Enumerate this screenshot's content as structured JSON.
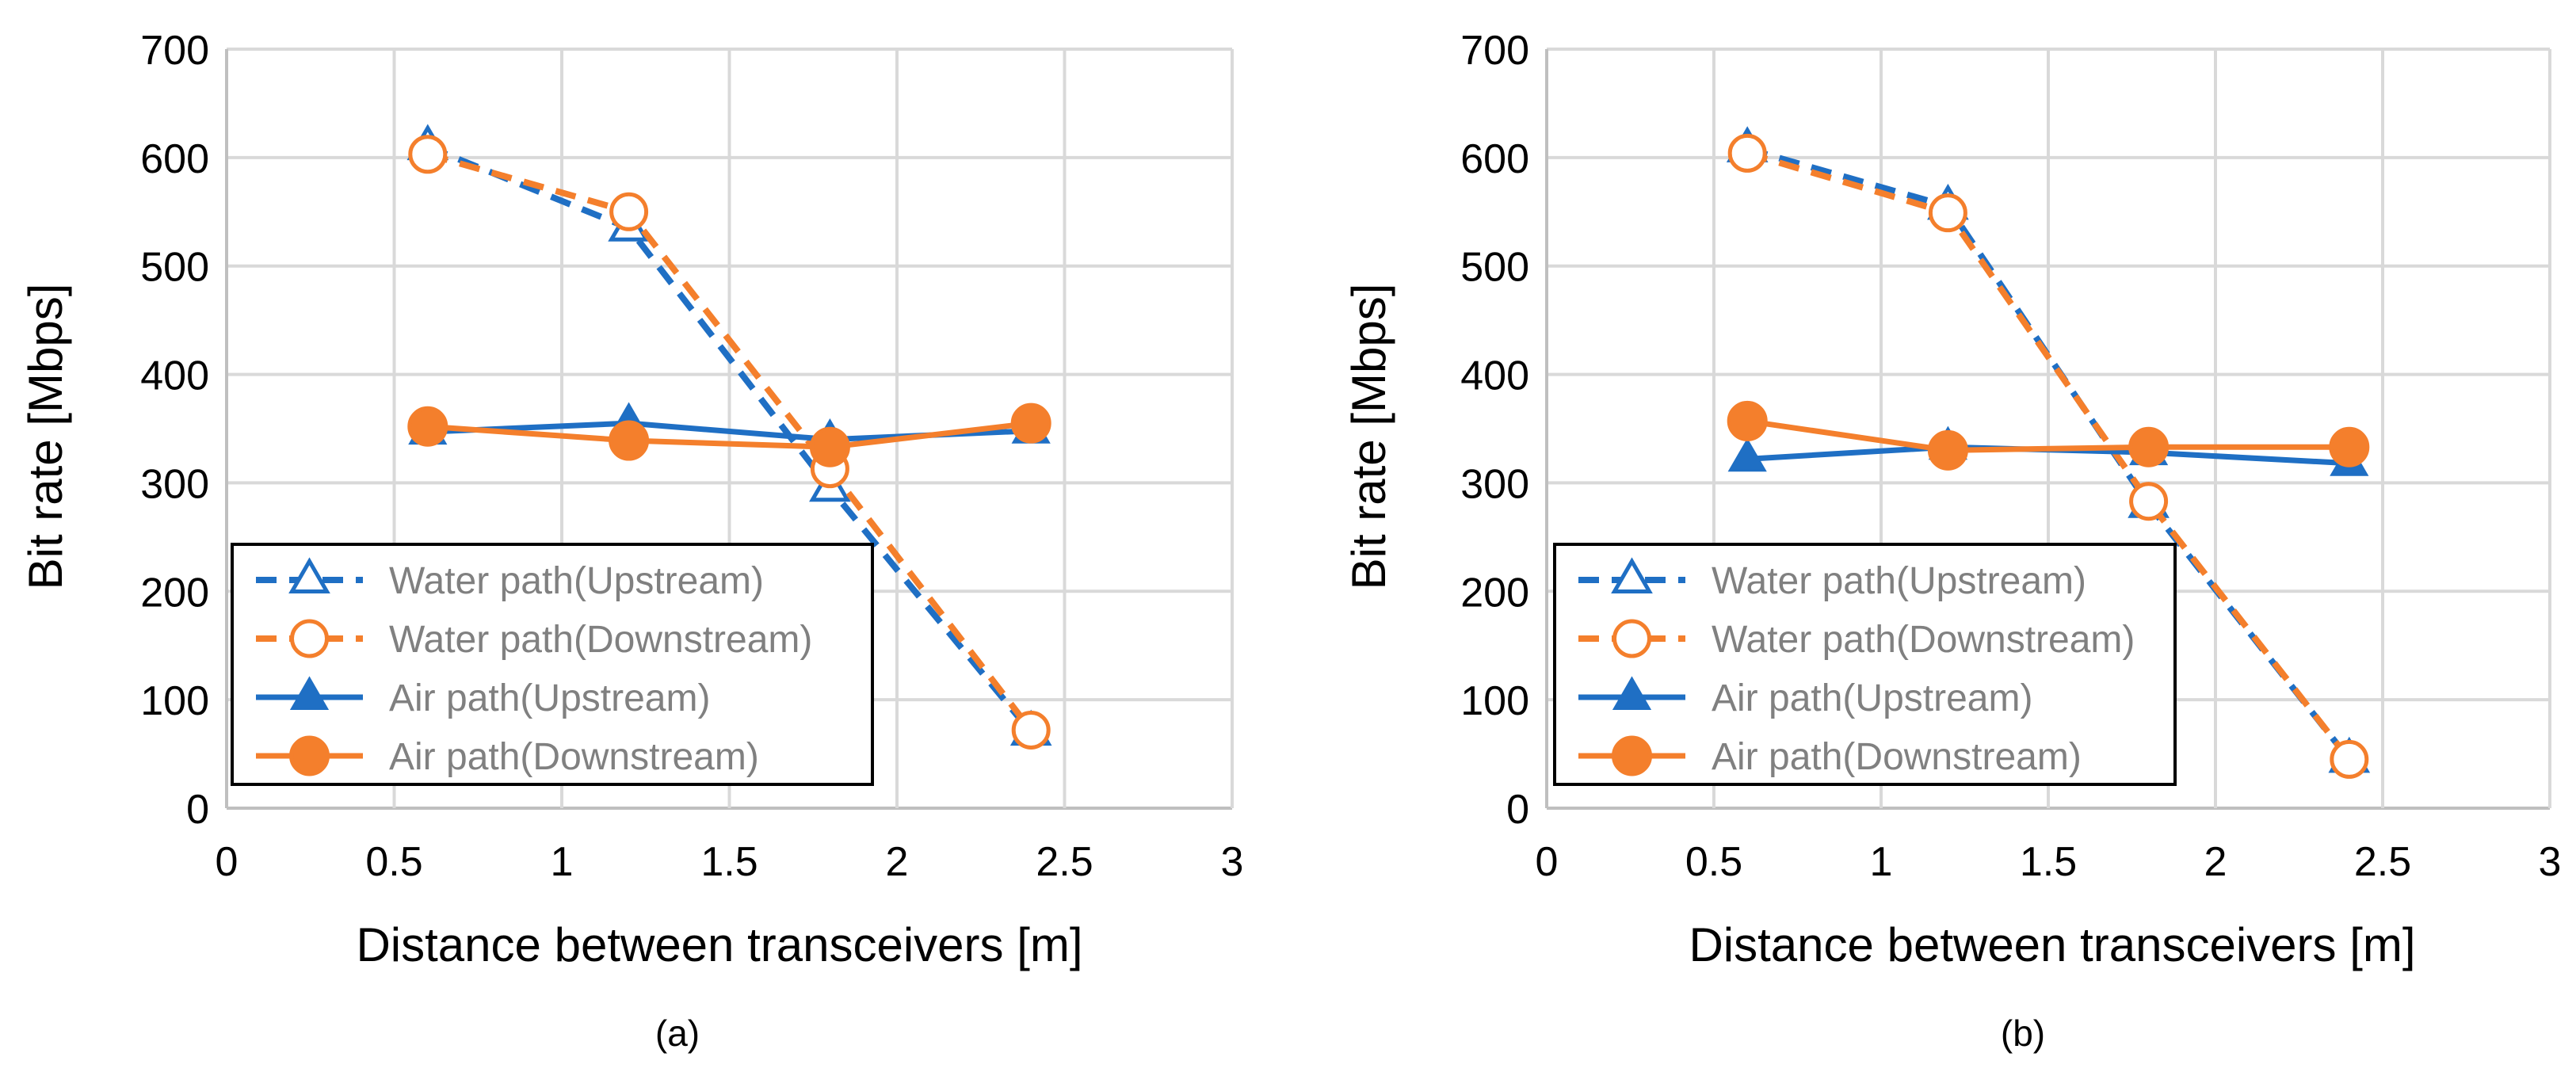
{
  "colors": {
    "blue": "#1f6fc4",
    "orange": "#f47f2c",
    "grid": "#d9d9d9",
    "axis": "#bfbfbf",
    "text": "#000000",
    "legend_text": "#808080"
  },
  "chart_data": [
    {
      "type": "line",
      "caption": "(a)",
      "xlabel": "Distance between transceivers [m]",
      "ylabel": "Bit rate [Mbps]",
      "xlim": [
        0,
        3
      ],
      "ylim": [
        0,
        700
      ],
      "x_ticks": [
        "0",
        "0.5",
        "1",
        "1.5",
        "2",
        "2.5",
        "3"
      ],
      "y_ticks": [
        "0",
        "100",
        "200",
        "300",
        "400",
        "500",
        "600",
        "700"
      ],
      "grid": true,
      "legend_position": "bottom-left",
      "series": [
        {
          "name": "Water path(Upstream)",
          "style": "dashed",
          "marker": "open-triangle",
          "color": "blue",
          "x": [
            0.6,
            1.2,
            1.8,
            2.4
          ],
          "y": [
            610,
            535,
            295,
            70
          ]
        },
        {
          "name": "Water path(Downstream)",
          "style": "dashed",
          "marker": "open-circle",
          "color": "orange",
          "x": [
            0.6,
            1.2,
            1.8,
            2.4
          ],
          "y": [
            603,
            550,
            313,
            72
          ]
        },
        {
          "name": "Air path(Upstream)",
          "style": "solid",
          "marker": "filled-triangle",
          "color": "blue",
          "x": [
            0.6,
            1.2,
            1.8,
            2.4
          ],
          "y": [
            347,
            355,
            340,
            348
          ]
        },
        {
          "name": "Air path(Downstream)",
          "style": "solid",
          "marker": "filled-circle",
          "color": "orange",
          "x": [
            0.6,
            1.2,
            1.8,
            2.4
          ],
          "y": [
            352,
            339,
            333,
            355
          ]
        }
      ]
    },
    {
      "type": "line",
      "caption": "(b)",
      "xlabel": "Distance between transceivers  [m]",
      "ylabel": "Bit rate [Mbps]",
      "xlim": [
        0,
        3
      ],
      "ylim": [
        0,
        700
      ],
      "x_ticks": [
        "0",
        "0.5",
        "1",
        "1.5",
        "2",
        "2.5",
        "3"
      ],
      "y_ticks": [
        "0",
        "100",
        "200",
        "300",
        "400",
        "500",
        "600",
        "700"
      ],
      "grid": true,
      "legend_position": "bottom-left",
      "series": [
        {
          "name": "Water path(Upstream)",
          "style": "dashed",
          "marker": "open-triangle",
          "color": "blue",
          "x": [
            0.6,
            1.2,
            1.8,
            2.4
          ],
          "y": [
            608,
            555,
            280,
            45
          ]
        },
        {
          "name": "Water path(Downstream)",
          "style": "dashed",
          "marker": "open-circle",
          "color": "orange",
          "x": [
            0.6,
            1.2,
            1.8,
            2.4
          ],
          "y": [
            604,
            549,
            283,
            45
          ]
        },
        {
          "name": "Air path(Upstream)",
          "style": "solid",
          "marker": "filled-triangle",
          "color": "blue",
          "x": [
            0.6,
            1.2,
            1.8,
            2.4
          ],
          "y": [
            322,
            333,
            328,
            318
          ]
        },
        {
          "name": "Air path(Downstream)",
          "style": "solid",
          "marker": "filled-circle",
          "color": "orange",
          "x": [
            0.6,
            1.2,
            1.8,
            2.4
          ],
          "y": [
            357,
            330,
            333,
            333
          ]
        }
      ]
    }
  ]
}
